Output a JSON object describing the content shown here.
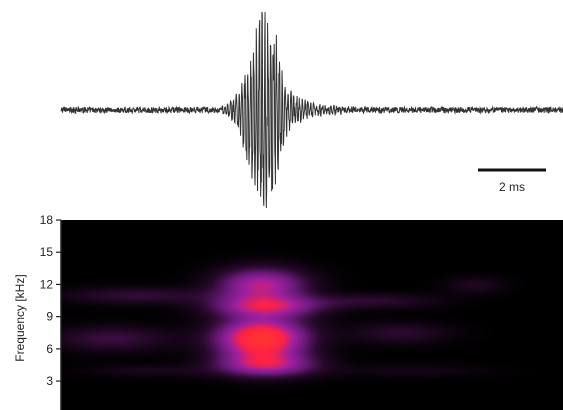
{
  "chart_data": [
    {
      "type": "line",
      "panel": "waveform",
      "xlabel": "",
      "ylabel": "",
      "waveform": {
        "baseline_noise": 0.03,
        "burst_center_ms": 0.0,
        "burst_peak_amplitude": 1.0,
        "burst_width_ms": 0.8,
        "x_range_ms": [
          -8.0,
          12.0
        ],
        "color": "#333333"
      },
      "scale_bar": {
        "label": "2 ms",
        "length_ms": 2
      }
    },
    {
      "type": "heatmap",
      "panel": "spectrogram",
      "ylabel": "Frequency [kHz]",
      "yticks": [
        "3",
        "6",
        "9",
        "12",
        "15",
        "18"
      ],
      "yticks_values": [
        3,
        6,
        9,
        12,
        15,
        18
      ],
      "ylim": [
        0,
        18
      ],
      "x_range_ms": [
        -8.0,
        12.0
      ],
      "colormap": [
        "#000000",
        "#2a0a2e",
        "#6a1a7a",
        "#a020a0",
        "#ff2244",
        "#ff3333"
      ],
      "energy_bands": [
        {
          "freq_khz": 12.0,
          "center_ms": 0.0,
          "width_ms": 1.8,
          "bandwidth_khz": 1.6,
          "intensity": 0.65
        },
        {
          "freq_khz": 10.0,
          "center_ms": 0.2,
          "width_ms": 2.2,
          "bandwidth_khz": 1.0,
          "intensity": 0.55
        },
        {
          "freq_khz": 7.0,
          "center_ms": 0.0,
          "width_ms": 1.8,
          "bandwidth_khz": 2.0,
          "intensity": 1.0
        },
        {
          "freq_khz": 4.5,
          "center_ms": 0.2,
          "width_ms": 2.0,
          "bandwidth_khz": 1.1,
          "intensity": 0.55
        },
        {
          "freq_khz": 11.0,
          "center_ms": -5.0,
          "width_ms": 3.0,
          "bandwidth_khz": 0.8,
          "intensity": 0.22
        },
        {
          "freq_khz": 10.5,
          "center_ms": 4.5,
          "width_ms": 2.5,
          "bandwidth_khz": 0.7,
          "intensity": 0.2
        },
        {
          "freq_khz": 7.0,
          "center_ms": -6.0,
          "width_ms": 2.4,
          "bandwidth_khz": 1.2,
          "intensity": 0.25
        },
        {
          "freq_khz": 7.5,
          "center_ms": 5.5,
          "width_ms": 2.0,
          "bandwidth_khz": 1.0,
          "intensity": 0.2
        },
        {
          "freq_khz": 12.0,
          "center_ms": 8.5,
          "width_ms": 1.2,
          "bandwidth_khz": 0.8,
          "intensity": 0.15
        },
        {
          "freq_khz": 4.0,
          "center_ms": -4.5,
          "width_ms": 2.5,
          "bandwidth_khz": 0.6,
          "intensity": 0.12
        },
        {
          "freq_khz": 4.0,
          "center_ms": 6.0,
          "width_ms": 3.0,
          "bandwidth_khz": 0.6,
          "intensity": 0.1
        }
      ]
    }
  ]
}
